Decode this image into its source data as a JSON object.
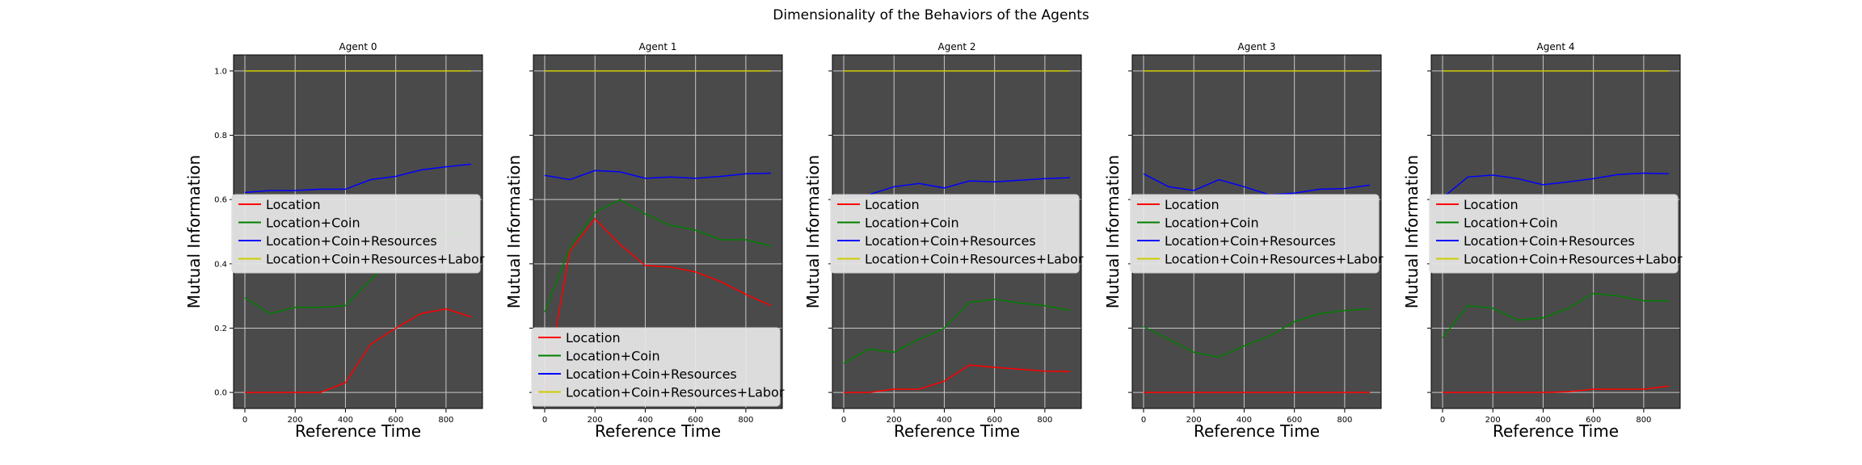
{
  "figure": {
    "title": "Dimensionality of the Behaviors of the Agents"
  },
  "chart_data": [
    {
      "type": "line",
      "title": "Agent 0",
      "xlabel": "Reference Time",
      "ylabel": "Mutual Information",
      "x": [
        0,
        100,
        200,
        300,
        400,
        500,
        600,
        700,
        800,
        900
      ],
      "xticks": [
        "0",
        "200",
        "400",
        "600",
        "800"
      ],
      "yticks": [
        "0.0",
        "0.2",
        "0.4",
        "0.6",
        "0.8",
        "1.0"
      ],
      "xlim": [
        -45,
        945
      ],
      "ylim": [
        -0.05,
        1.05
      ],
      "grid": true,
      "legend": "center-left",
      "series": [
        {
          "name": "Location",
          "color": "#ff0000",
          "values": [
            0.0,
            0.0,
            0.0,
            0.0,
            0.03,
            0.15,
            0.2,
            0.245,
            0.26,
            0.235
          ]
        },
        {
          "name": "Location+Coin",
          "color": "#008000",
          "values": [
            0.295,
            0.245,
            0.265,
            0.265,
            0.27,
            0.35,
            0.43,
            0.47,
            0.49,
            0.5
          ]
        },
        {
          "name": "Location+Coin+Resources",
          "color": "#0000ff",
          "values": [
            0.622,
            0.628,
            0.628,
            0.632,
            0.632,
            0.662,
            0.672,
            0.692,
            0.702,
            0.71
          ]
        },
        {
          "name": "Location+Coin+Resources+Labor",
          "color": "#cccc00",
          "values": [
            1.0,
            1.0,
            1.0,
            1.0,
            1.0,
            1.0,
            1.0,
            1.0,
            1.0,
            1.0
          ]
        }
      ]
    },
    {
      "type": "line",
      "title": "Agent 1",
      "xlabel": "Reference Time",
      "ylabel": "Mutual Information",
      "x": [
        0,
        100,
        200,
        300,
        400,
        500,
        600,
        700,
        800,
        900
      ],
      "xticks": [
        "0",
        "200",
        "400",
        "600",
        "800"
      ],
      "yticks": [
        "0.0",
        "0.2",
        "0.4",
        "0.6",
        "0.8",
        "1.0"
      ],
      "xlim": [
        -45,
        945
      ],
      "ylim": [
        -0.05,
        1.05
      ],
      "grid": true,
      "legend": "lower-left",
      "series": [
        {
          "name": "Location",
          "color": "#ff0000",
          "values": [
            0.0,
            0.44,
            0.54,
            0.46,
            0.395,
            0.39,
            0.375,
            0.345,
            0.305,
            0.27
          ]
        },
        {
          "name": "Location+Coin",
          "color": "#008000",
          "values": [
            0.25,
            0.45,
            0.56,
            0.6,
            0.555,
            0.52,
            0.505,
            0.475,
            0.475,
            0.455
          ]
        },
        {
          "name": "Location+Coin+Resources",
          "color": "#0000ff",
          "values": [
            0.675,
            0.662,
            0.69,
            0.686,
            0.666,
            0.67,
            0.666,
            0.672,
            0.68,
            0.682
          ]
        },
        {
          "name": "Location+Coin+Resources+Labor",
          "color": "#cccc00",
          "values": [
            1.0,
            1.0,
            1.0,
            1.0,
            1.0,
            1.0,
            1.0,
            1.0,
            1.0,
            1.0
          ]
        }
      ]
    },
    {
      "type": "line",
      "title": "Agent 2",
      "xlabel": "Reference Time",
      "ylabel": "Mutual Information",
      "x": [
        0,
        100,
        200,
        300,
        400,
        500,
        600,
        700,
        800,
        900
      ],
      "xticks": [
        "0",
        "200",
        "400",
        "600",
        "800"
      ],
      "yticks": [
        "0.0",
        "0.2",
        "0.4",
        "0.6",
        "0.8",
        "1.0"
      ],
      "xlim": [
        -45,
        945
      ],
      "ylim": [
        -0.05,
        1.05
      ],
      "grid": true,
      "legend": "center-left",
      "series": [
        {
          "name": "Location",
          "color": "#ff0000",
          "values": [
            0.0,
            0.0,
            0.01,
            0.01,
            0.035,
            0.085,
            0.078,
            0.072,
            0.066,
            0.065
          ]
        },
        {
          "name": "Location+Coin",
          "color": "#008000",
          "values": [
            0.09,
            0.135,
            0.125,
            0.165,
            0.2,
            0.28,
            0.29,
            0.278,
            0.27,
            0.255
          ]
        },
        {
          "name": "Location+Coin+Resources",
          "color": "#0000ff",
          "values": [
            0.605,
            0.615,
            0.64,
            0.65,
            0.636,
            0.658,
            0.655,
            0.66,
            0.665,
            0.668
          ]
        },
        {
          "name": "Location+Coin+Resources+Labor",
          "color": "#cccc00",
          "values": [
            1.0,
            1.0,
            1.0,
            1.0,
            1.0,
            1.0,
            1.0,
            1.0,
            1.0,
            1.0
          ]
        }
      ]
    },
    {
      "type": "line",
      "title": "Agent 3",
      "xlabel": "Reference Time",
      "ylabel": "Mutual Information",
      "x": [
        0,
        100,
        200,
        300,
        400,
        500,
        600,
        700,
        800,
        900
      ],
      "xticks": [
        "0",
        "200",
        "400",
        "600",
        "800"
      ],
      "yticks": [
        "0.0",
        "0.2",
        "0.4",
        "0.6",
        "0.8",
        "1.0"
      ],
      "xlim": [
        -45,
        945
      ],
      "ylim": [
        -0.05,
        1.05
      ],
      "grid": true,
      "legend": "center-left",
      "series": [
        {
          "name": "Location",
          "color": "#ff0000",
          "values": [
            0.0,
            0.0,
            0.0,
            0.0,
            0.0,
            0.0,
            0.0,
            0.0,
            0.0,
            0.0
          ]
        },
        {
          "name": "Location+Coin",
          "color": "#008000",
          "values": [
            0.205,
            0.165,
            0.125,
            0.11,
            0.145,
            0.175,
            0.22,
            0.245,
            0.255,
            0.26
          ]
        },
        {
          "name": "Location+Coin+Resources",
          "color": "#0000ff",
          "values": [
            0.68,
            0.64,
            0.628,
            0.662,
            0.64,
            0.615,
            0.62,
            0.632,
            0.634,
            0.645
          ]
        },
        {
          "name": "Location+Coin+Resources+Labor",
          "color": "#cccc00",
          "values": [
            1.0,
            1.0,
            1.0,
            1.0,
            1.0,
            1.0,
            1.0,
            1.0,
            1.0,
            1.0
          ]
        }
      ]
    },
    {
      "type": "line",
      "title": "Agent 4",
      "xlabel": "Reference Time",
      "ylabel": "Mutual Information",
      "x": [
        0,
        100,
        200,
        300,
        400,
        500,
        600,
        700,
        800,
        900
      ],
      "xticks": [
        "0",
        "200",
        "400",
        "600",
        "800"
      ],
      "yticks": [
        "0.0",
        "0.2",
        "0.4",
        "0.6",
        "0.8",
        "1.0"
      ],
      "xlim": [
        -45,
        945
      ],
      "ylim": [
        -0.05,
        1.05
      ],
      "grid": true,
      "legend": "center-left",
      "series": [
        {
          "name": "Location",
          "color": "#ff0000",
          "values": [
            0.0,
            0.0,
            0.0,
            0.0,
            0.0,
            0.002,
            0.01,
            0.01,
            0.01,
            0.02
          ]
        },
        {
          "name": "Location+Coin",
          "color": "#008000",
          "values": [
            0.17,
            0.27,
            0.262,
            0.225,
            0.232,
            0.262,
            0.308,
            0.3,
            0.285,
            0.285
          ]
        },
        {
          "name": "Location+Coin+Resources",
          "color": "#0000ff",
          "values": [
            0.605,
            0.67,
            0.676,
            0.665,
            0.646,
            0.655,
            0.665,
            0.678,
            0.682,
            0.68
          ]
        },
        {
          "name": "Location+Coin+Resources+Labor",
          "color": "#cccc00",
          "values": [
            1.0,
            1.0,
            1.0,
            1.0,
            1.0,
            1.0,
            1.0,
            1.0,
            1.0,
            1.0
          ]
        }
      ]
    }
  ]
}
